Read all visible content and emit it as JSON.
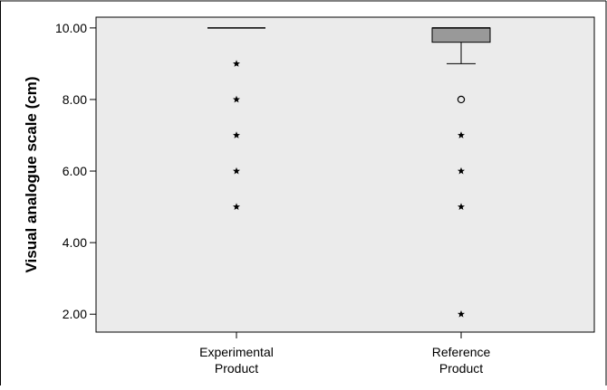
{
  "chart_data": {
    "type": "boxplot",
    "ylabel": "Visual analogue scale (cm)",
    "ylim": [
      1.5,
      10.3
    ],
    "yticks": [
      "2.00",
      "4.00",
      "6.00",
      "8.00",
      "10.00"
    ],
    "ytick_values": [
      2,
      4,
      6,
      8,
      10
    ],
    "grid": false,
    "categories": [
      {
        "line1": "Experimental",
        "line2": "Product"
      },
      {
        "line1": "Reference",
        "line2": "Product"
      }
    ],
    "boxes": [
      {
        "name": "Experimental Product",
        "q1": 10.0,
        "median": 10.0,
        "q3": 10.0,
        "whisker_low": 10.0,
        "whisker_high": 10.0,
        "outliers_circle": [],
        "outliers_star": [
          9,
          8,
          7,
          6,
          5
        ]
      },
      {
        "name": "Reference Product",
        "q1": 9.6,
        "median": 10.0,
        "q3": 10.0,
        "whisker_low": 9.0,
        "whisker_high": 10.0,
        "outliers_circle": [
          8
        ],
        "outliers_star": [
          7,
          6,
          5,
          2
        ]
      }
    ],
    "colors": {
      "plot_bg": "#ebebeb",
      "box_fill": "#999999",
      "line": "#000000"
    }
  }
}
